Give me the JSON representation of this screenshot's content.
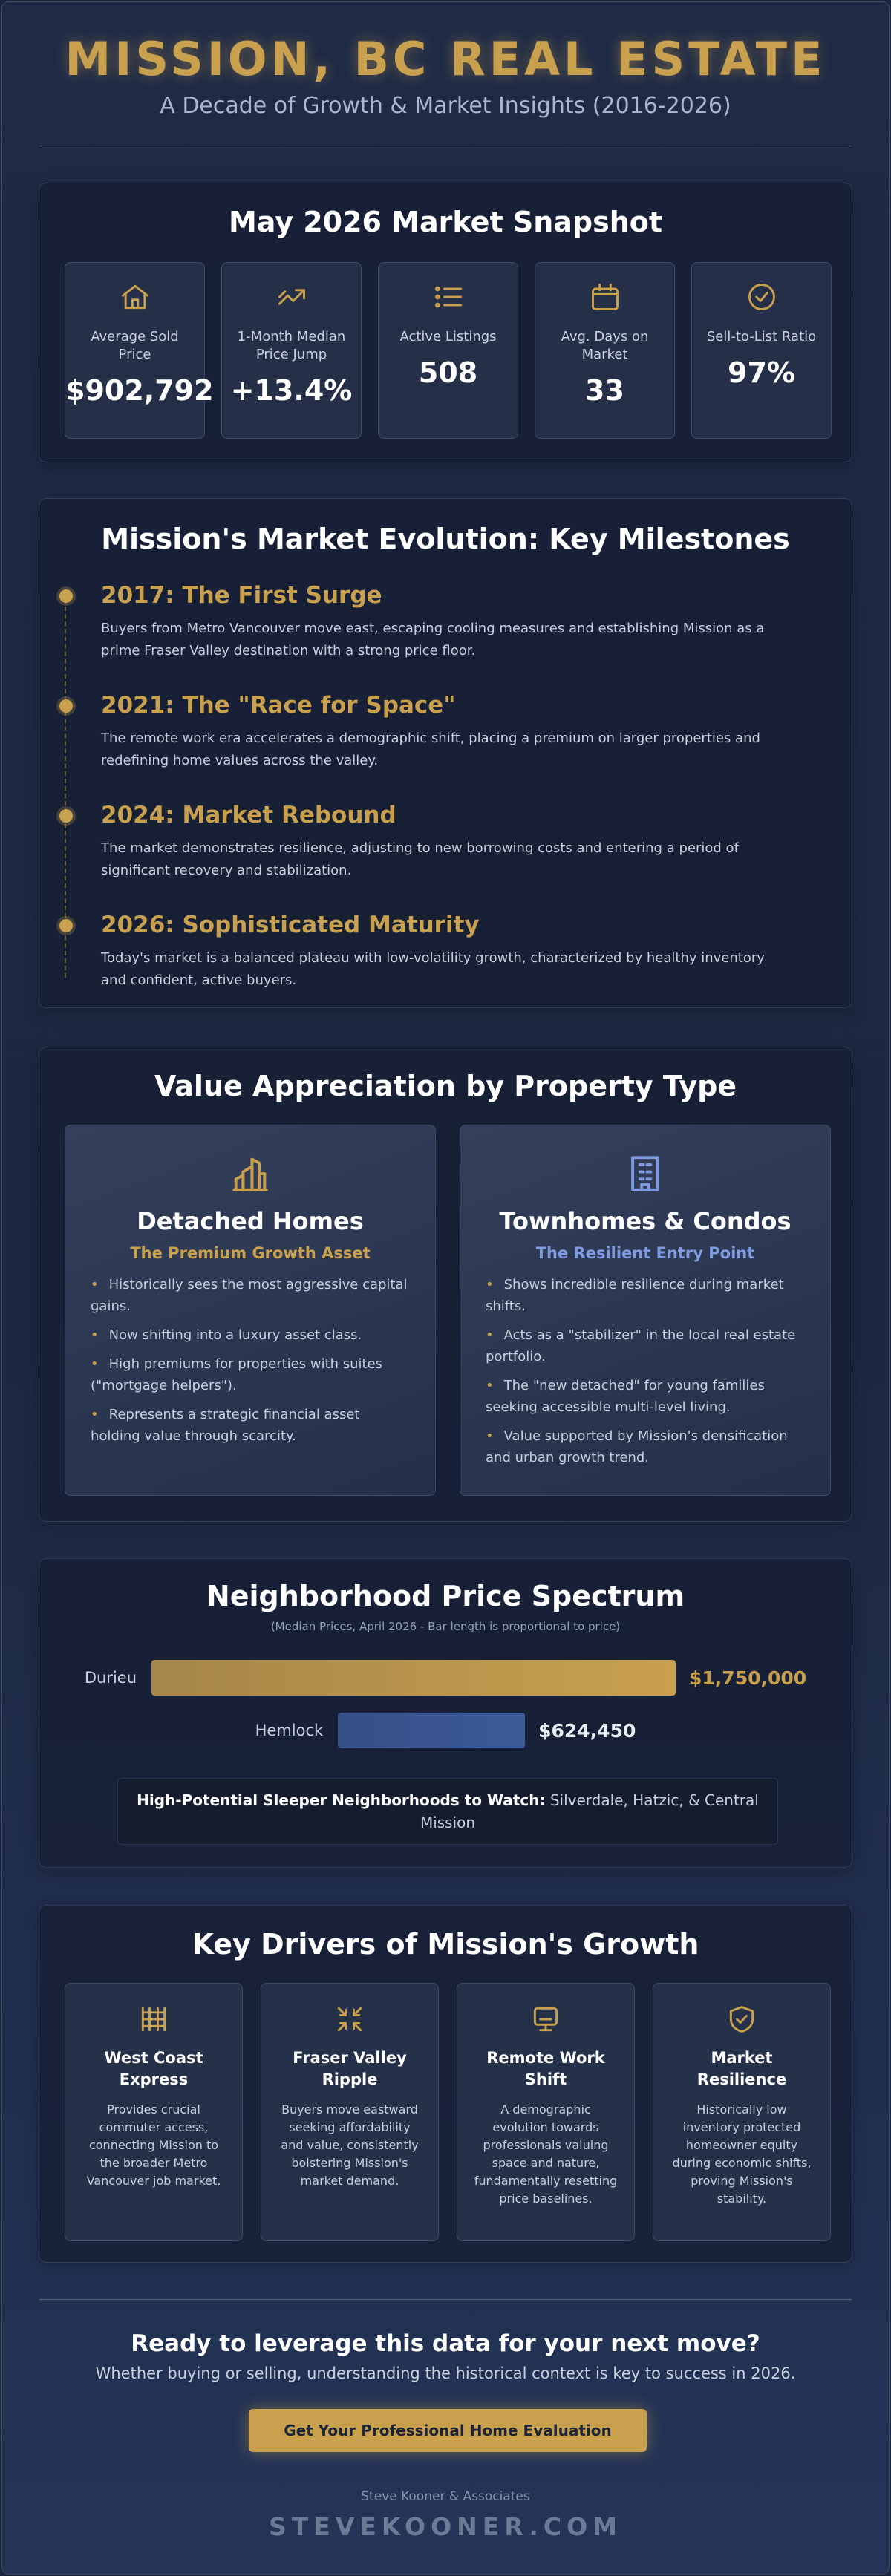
{
  "header": {
    "title": "MISSION, BC REAL ESTATE",
    "subtitle": "A Decade of Growth & Market Insights (2016-2026)"
  },
  "snapshot": {
    "title": "May 2026 Market Snapshot",
    "items": [
      {
        "label": "Average Sold Price",
        "value": "$902,792"
      },
      {
        "label": "1-Month Median Price Jump",
        "value": "+13.4%"
      },
      {
        "label": "Active Listings",
        "value": "508"
      },
      {
        "label": "Avg. Days on Market",
        "value": "33"
      },
      {
        "label": "Sell-to-List Ratio",
        "value": "97%"
      }
    ]
  },
  "milestones": {
    "title": "Mission's Market Evolution: Key Milestones",
    "items": [
      {
        "title": "2017: The First Surge",
        "text": "Buyers from Metro Vancouver move east, escaping cooling measures and establishing Mission as a prime Fraser Valley destination with a strong price floor."
      },
      {
        "title": "2021: The \"Race for Space\"",
        "text": "The remote work era accelerates a demographic shift, placing a premium on larger properties and redefining home values across the valley."
      },
      {
        "title": "2024: Market Rebound",
        "text": "The market demonstrates resilience, adjusting to new borrowing costs and entering a period of significant recovery and stabilization."
      },
      {
        "title": "2026: Sophisticated Maturity",
        "text": "Today's market is a balanced plateau with low-volatility growth, characterized by healthy inventory and confident, active buyers."
      }
    ]
  },
  "property_types": {
    "title": "Value Appreciation by Property Type",
    "cards": [
      {
        "title": "Detached Homes",
        "subtitle": "The Premium Growth Asset",
        "bullets": [
          "Historically sees the most aggressive capital gains.",
          "Now shifting into a luxury asset class.",
          "High premiums for properties with suites (\"mortgage helpers\").",
          "Represents a strategic financial asset holding value through scarcity."
        ]
      },
      {
        "title": "Townhomes & Condos",
        "subtitle": "The Resilient Entry Point",
        "bullets": [
          "Shows incredible resilience during market shifts.",
          "Acts as a \"stabilizer\" in the local real estate portfolio.",
          "The \"new detached\" for young families seeking accessible multi-level living.",
          "Value supported by Mission's densification and urban growth trend."
        ]
      }
    ]
  },
  "spectrum": {
    "title": "Neighborhood Price Spectrum",
    "note": "(Median Prices, April 2026 - Bar length is proportional to price)",
    "categories": [
      "Durieu",
      "Hemlock"
    ],
    "values": [
      1750000,
      624450
    ],
    "value_labels": [
      "$1,750,000",
      "$624,450"
    ],
    "colors": [
      "#c9a04e",
      "#3d5a99"
    ],
    "callout": {
      "label": "High-Potential Sleeper Neighborhoods to Watch:",
      "text": "Silverdale, Hatzic, & Central Mission"
    }
  },
  "drivers": {
    "title": "Key Drivers of Mission's Growth",
    "items": [
      {
        "title": "West Coast Express",
        "text": "Provides crucial commuter access, connecting Mission to the broader Metro Vancouver job market."
      },
      {
        "title": "Fraser Valley Ripple",
        "text": "Buyers move eastward seeking affordability and value, consistently bolstering Mission's market demand."
      },
      {
        "title": "Remote Work Shift",
        "text": "A demographic evolution towards professionals valuing space and nature, fundamentally resetting price baselines."
      },
      {
        "title": "Market Resilience",
        "text": "Historically low inventory protected homeowner equity during economic shifts, proving Mission's stability."
      }
    ]
  },
  "cta": {
    "title": "Ready to leverage this data for your next move?",
    "text": "Whether buying or selling, understanding the historical context is key to success in 2026.",
    "button": "Get Your Professional Home Evaluation"
  },
  "footer": {
    "company": "Steve Kooner & Associates",
    "site": "STEVEKOONER.COM"
  }
}
